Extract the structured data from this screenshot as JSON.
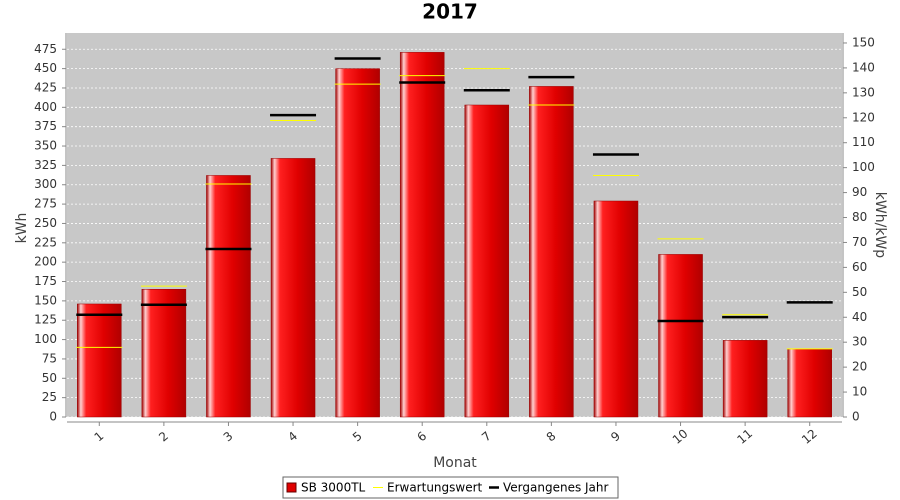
{
  "chart_data": {
    "type": "bar",
    "title": "2017",
    "x_label": "Monat",
    "y_label": "kWh",
    "y2_label": "kWh/kWp",
    "categories": [
      "1",
      "2",
      "3",
      "4",
      "5",
      "6",
      "7",
      "8",
      "9",
      "10",
      "11",
      "12"
    ],
    "series": [
      {
        "name": "SB 3000TL",
        "color": "#e00000",
        "style": "bar",
        "values": [
          146,
          165,
          312,
          334,
          450,
          471,
          403,
          427,
          279,
          210,
          99,
          88
        ]
      },
      {
        "name": "Erwartungswert",
        "color": "#ffff00",
        "style": "dash",
        "values": [
          90,
          169,
          301,
          383,
          430,
          441,
          450,
          403,
          312,
          230,
          132,
          88
        ]
      },
      {
        "name": "Vergangenes Jahr",
        "color": "#000000",
        "style": "dash",
        "values": [
          132,
          145,
          217,
          390,
          463,
          432,
          422,
          439,
          339,
          124,
          129,
          148
        ]
      }
    ],
    "ylim": [
      0,
      496
    ],
    "yticks": [
      0,
      25,
      50,
      75,
      100,
      125,
      150,
      175,
      200,
      225,
      250,
      275,
      300,
      325,
      350,
      375,
      400,
      425,
      450,
      475
    ],
    "y2lim": [
      0,
      154
    ],
    "y2ticks": [
      0,
      10,
      20,
      30,
      40,
      50,
      60,
      70,
      80,
      90,
      100,
      110,
      120,
      130,
      140,
      150
    ],
    "grid": true
  }
}
